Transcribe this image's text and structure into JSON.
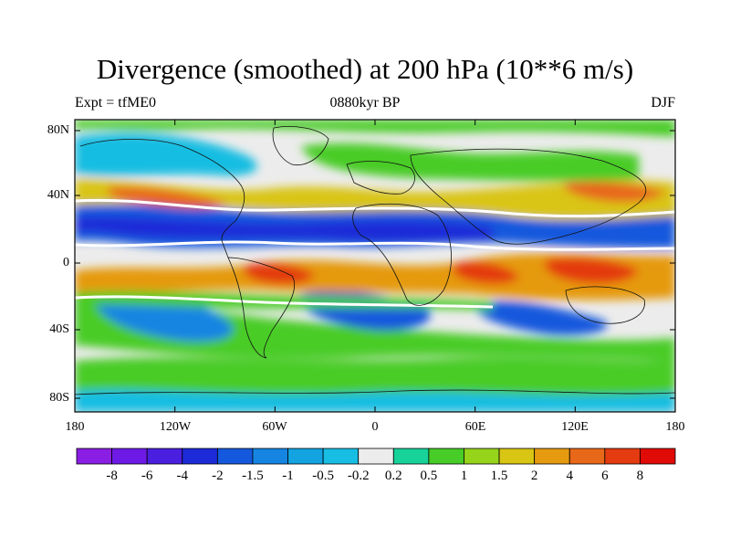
{
  "title": "Divergence (smoothed) at 200 hPa (10**6 m/s)",
  "subtitle_left": "Expt = tfME0",
  "subtitle_center": "0880kyr BP",
  "subtitle_right": "DJF",
  "y_axis_labels": [
    "80N",
    "40N",
    "0",
    "40S",
    "80S"
  ],
  "x_axis_labels": [
    "180",
    "120W",
    "60W",
    "0",
    "60E",
    "120E",
    "180"
  ],
  "colorbar": {
    "labels": [
      "-8",
      "-6",
      "-4",
      "-2",
      "-1.5",
      "-1",
      "-0.5",
      "-0.2",
      "0.2",
      "0.5",
      "1",
      "1.5",
      "2",
      "4",
      "6",
      "8"
    ],
    "colors": [
      "#8a1ee3",
      "#6e1ae6",
      "#4b1fe0",
      "#1c2ad8",
      "#1459dd",
      "#1685e2",
      "#12a3e0",
      "#17bde2",
      "#ececec",
      "#17d39a",
      "#48cc28",
      "#96d31b",
      "#d9c513",
      "#e59a10",
      "#e8681a",
      "#e43b10",
      "#e00a06"
    ]
  },
  "colors": {
    "neutral": "#ececec",
    "coast": "#111111"
  }
}
